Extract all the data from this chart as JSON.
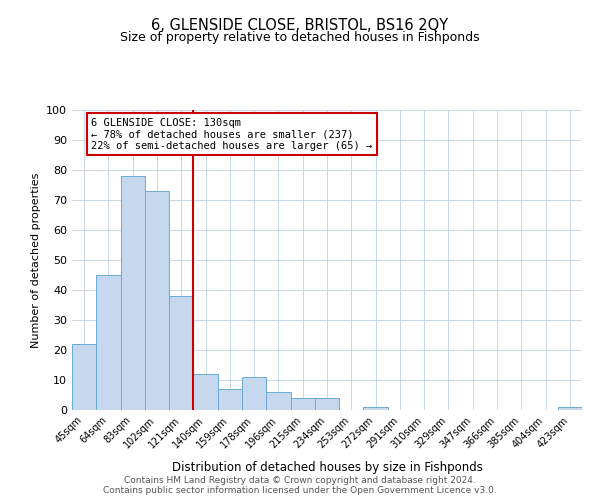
{
  "title": "6, GLENSIDE CLOSE, BRISTOL, BS16 2QY",
  "subtitle": "Size of property relative to detached houses in Fishponds",
  "xlabel": "Distribution of detached houses by size in Fishponds",
  "ylabel": "Number of detached properties",
  "bar_labels": [
    "45sqm",
    "64sqm",
    "83sqm",
    "102sqm",
    "121sqm",
    "140sqm",
    "159sqm",
    "178sqm",
    "196sqm",
    "215sqm",
    "234sqm",
    "253sqm",
    "272sqm",
    "291sqm",
    "310sqm",
    "329sqm",
    "347sqm",
    "366sqm",
    "385sqm",
    "404sqm",
    "423sqm"
  ],
  "bar_values": [
    22,
    45,
    78,
    73,
    38,
    12,
    7,
    11,
    6,
    4,
    4,
    0,
    1,
    0,
    0,
    0,
    0,
    0,
    0,
    0,
    1
  ],
  "bar_color": "#c5d8ee",
  "bar_edge_color": "#6aabd2",
  "vline_x": 4.5,
  "vline_color": "#cc0000",
  "annotation_title": "6 GLENSIDE CLOSE: 130sqm",
  "annotation_line1": "← 78% of detached houses are smaller (237)",
  "annotation_line2": "22% of semi-detached houses are larger (65) →",
  "annotation_box_color": "#ffffff",
  "annotation_box_edge": "#cc0000",
  "ylim": [
    0,
    100
  ],
  "yticks": [
    0,
    10,
    20,
    30,
    40,
    50,
    60,
    70,
    80,
    90,
    100
  ],
  "footer1": "Contains HM Land Registry data © Crown copyright and database right 2024.",
  "footer2": "Contains public sector information licensed under the Open Government Licence v3.0.",
  "background_color": "#ffffff",
  "grid_color": "#c8d8e8"
}
